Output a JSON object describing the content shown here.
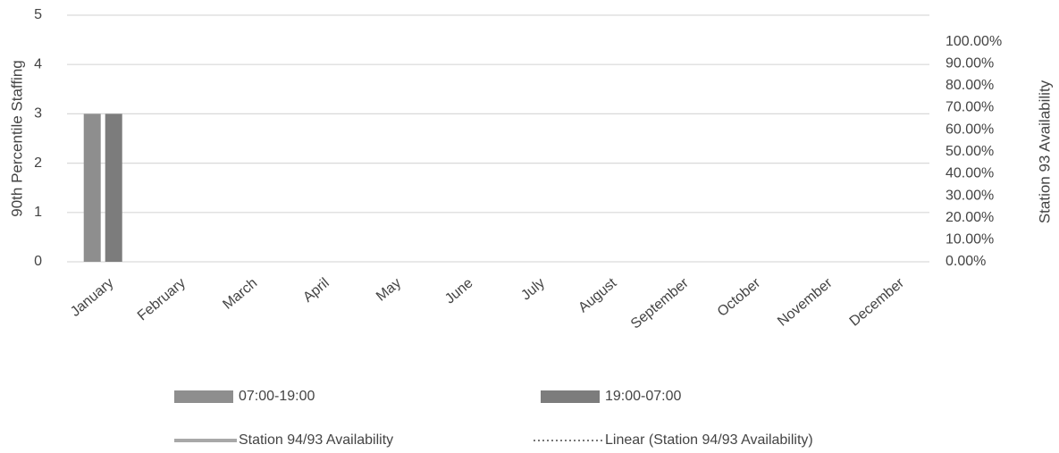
{
  "chart_data": {
    "type": "bar",
    "y_label": "90th Percentile Staffing",
    "y2_label": "Station 93 Availability",
    "categories": [
      "January",
      "February",
      "March",
      "April",
      "May",
      "June",
      "July",
      "August",
      "September",
      "October",
      "November",
      "December"
    ],
    "series": [
      {
        "name": "07:00-19:00",
        "type": "bar",
        "color": "#8e8e8e",
        "values": [
          3,
          null,
          null,
          null,
          null,
          null,
          null,
          null,
          null,
          null,
          null,
          null
        ]
      },
      {
        "name": "19:00-07:00",
        "type": "bar",
        "color": "#7c7c7c",
        "values": [
          3,
          null,
          null,
          null,
          null,
          null,
          null,
          null,
          null,
          null,
          null,
          null
        ]
      },
      {
        "name": "Station 94/93 Availability",
        "type": "line",
        "axis": "y2",
        "color": "#a8a8a8",
        "values": [
          null,
          null,
          null,
          null,
          null,
          null,
          null,
          null,
          null,
          null,
          null,
          null
        ]
      },
      {
        "name": "Linear (Station 94/93 Availability)",
        "type": "line",
        "axis": "y2",
        "linestyle": "dotted",
        "color": "#777777",
        "values": [
          null,
          null,
          null,
          null,
          null,
          null,
          null,
          null,
          null,
          null,
          null,
          null
        ]
      }
    ],
    "ylim": [
      0,
      5
    ],
    "yticks": [
      0,
      1,
      2,
      3,
      4,
      5
    ],
    "y2lim": [
      0,
      112
    ],
    "y2ticks": [
      {
        "value": 0,
        "label": "0.00%"
      },
      {
        "value": 10,
        "label": "10.00%"
      },
      {
        "value": 20,
        "label": "20.00%"
      },
      {
        "value": 30,
        "label": "30.00%"
      },
      {
        "value": 40,
        "label": "40.00%"
      },
      {
        "value": 50,
        "label": "50.00%"
      },
      {
        "value": 60,
        "label": "60.00%"
      },
      {
        "value": 70,
        "label": "70.00%"
      },
      {
        "value": 80,
        "label": "80.00%"
      },
      {
        "value": 90,
        "label": "90.00%"
      },
      {
        "value": 100,
        "label": "100.00%"
      }
    ],
    "grid": true
  }
}
